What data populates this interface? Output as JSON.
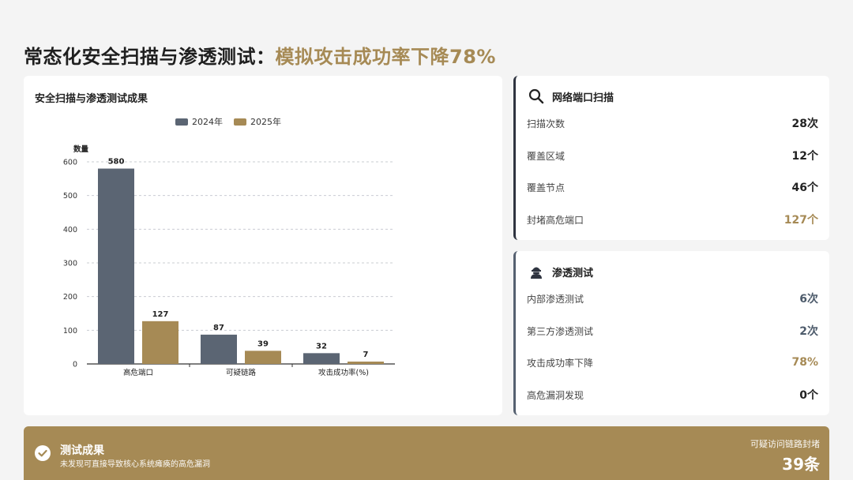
{
  "page": {
    "title_main": "常态化安全扫描与渗透测试：",
    "title_accent": "模拟攻击成功率下降78%"
  },
  "chart_panel": {
    "title": "安全扫描与渗透测试成果"
  },
  "chart_data": {
    "type": "bar",
    "title": "安全扫描与渗透测试成果",
    "ylabel": "数量",
    "xlabel": "",
    "categories": [
      "高危端口",
      "可疑链路",
      "攻击成功率(%)"
    ],
    "series": [
      {
        "name": "2024年",
        "values": [
          580,
          87,
          32
        ],
        "color": "#5b6573"
      },
      {
        "name": "2025年",
        "values": [
          127,
          39,
          7
        ],
        "color": "#a68a55"
      }
    ],
    "ylim": [
      0,
      600
    ],
    "yticks": [
      0,
      100,
      200,
      300,
      400,
      500,
      600
    ],
    "grid": true,
    "legend_position": "top"
  },
  "scan_panel": {
    "title": "网络端口扫描",
    "icon": "search-icon",
    "rows": [
      {
        "label": "扫描次数",
        "value": "28次"
      },
      {
        "label": "覆盖区域",
        "value": "12个"
      },
      {
        "label": "覆盖节点",
        "value": "46个"
      },
      {
        "label": "封堵高危端口",
        "value": "127个"
      }
    ]
  },
  "pen_panel": {
    "title": "渗透测试",
    "icon": "hacker-icon",
    "rows": [
      {
        "label": "内部渗透测试",
        "value": "6次"
      },
      {
        "label": "第三方渗透测试",
        "value": "2次"
      },
      {
        "label": "攻击成功率下降",
        "value": "78%"
      },
      {
        "label": "高危漏洞发现",
        "value": "0个"
      }
    ]
  },
  "banner": {
    "title": "测试成果",
    "subtitle": "未发现可直接导致核心系统瘫痪的高危漏洞",
    "right_label": "可疑访问链路封堵",
    "right_value": "39条"
  },
  "colors": {
    "accent": "#a68a55",
    "slate": "#5b6573",
    "dark": "#2f3440"
  }
}
